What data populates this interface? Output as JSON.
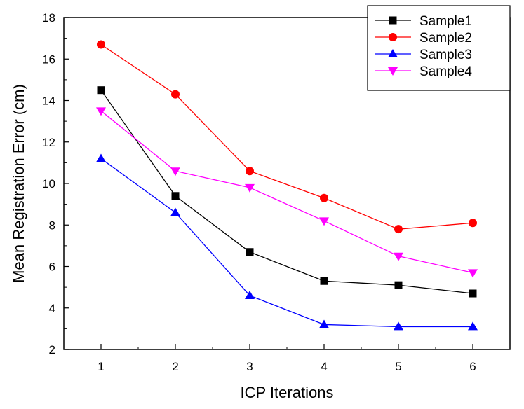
{
  "chart_data": {
    "type": "line",
    "title": "",
    "xlabel": "ICP Iterations",
    "ylabel": "Mean Registration Error (cm)",
    "x": [
      1,
      2,
      3,
      4,
      5,
      6
    ],
    "xlim": [
      0.5,
      6.5
    ],
    "ylim": [
      2,
      18
    ],
    "xticks": [
      "1",
      "2",
      "3",
      "4",
      "5",
      "6"
    ],
    "yticks": [
      "2",
      "4",
      "6",
      "8",
      "10",
      "12",
      "14",
      "16",
      "18"
    ],
    "grid": false,
    "legend_position": "top-right",
    "series": [
      {
        "name": "Sample1",
        "color": "#000000",
        "marker": "square",
        "values": [
          14.5,
          9.4,
          6.7,
          5.3,
          5.1,
          4.7
        ]
      },
      {
        "name": "Sample2",
        "color": "#ff0000",
        "marker": "circle",
        "values": [
          16.7,
          14.3,
          10.6,
          9.3,
          7.8,
          8.1
        ]
      },
      {
        "name": "Sample3",
        "color": "#0000ff",
        "marker": "triangle-up",
        "values": [
          11.2,
          8.6,
          4.6,
          3.2,
          3.1,
          3.1
        ]
      },
      {
        "name": "Sample4",
        "color": "#ff00ff",
        "marker": "triangle-down",
        "values": [
          13.5,
          10.6,
          9.8,
          8.2,
          6.5,
          5.7
        ]
      }
    ]
  }
}
